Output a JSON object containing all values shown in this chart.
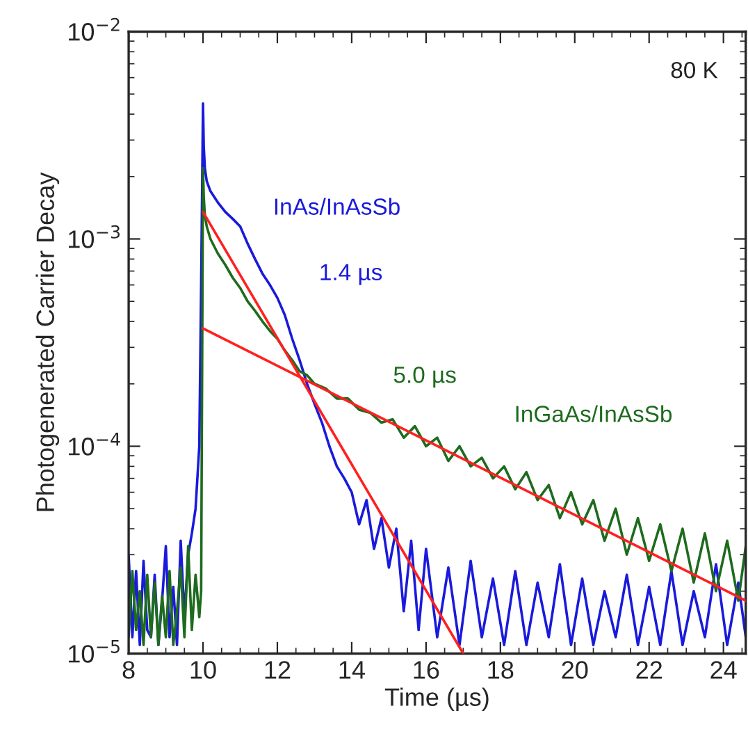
{
  "chart_data": {
    "type": "line",
    "xlabel": "Time (µs)",
    "ylabel": "Photogenerated Carrier Decay",
    "log": "y",
    "xlim": [
      8,
      24.6
    ],
    "ylim": [
      1e-05,
      0.01
    ],
    "xticks": [
      8,
      10,
      12,
      14,
      16,
      18,
      20,
      22,
      24
    ],
    "yticks": [
      {
        "value": 1e-05,
        "label": "10$^{−5}$"
      },
      {
        "value": 0.0001,
        "label": "10$^{−4}$"
      },
      {
        "value": 0.001,
        "label": "10$^{−3}$"
      },
      {
        "value": 0.01,
        "label": "10$^{−2}$"
      }
    ],
    "grid": false,
    "legend": false,
    "marker": "none",
    "line_style": "solid",
    "series": [
      {
        "name": "InAs/InAsSb",
        "color": "#1a1adc",
        "x": [
          8.0,
          8.1,
          8.2,
          8.3,
          8.4,
          8.5,
          8.6,
          8.7,
          8.8,
          8.9,
          9.0,
          9.1,
          9.2,
          9.3,
          9.4,
          9.5,
          9.6,
          9.7,
          9.8,
          9.9,
          9.95,
          10.0,
          10.02,
          10.05,
          10.1,
          10.2,
          10.4,
          10.6,
          10.8,
          11.0,
          11.2,
          11.4,
          11.6,
          11.8,
          12.0,
          12.2,
          12.4,
          12.6,
          12.8,
          13.0,
          13.2,
          13.4,
          13.6,
          13.8,
          14.0,
          14.2,
          14.4,
          14.6,
          14.8,
          15.0,
          15.2,
          15.4,
          15.6,
          15.8,
          16.0,
          16.3,
          16.6,
          16.9,
          17.2,
          17.5,
          17.8,
          18.1,
          18.4,
          18.7,
          19.0,
          19.3,
          19.6,
          19.9,
          20.2,
          20.5,
          20.8,
          21.1,
          21.4,
          21.7,
          22.0,
          22.3,
          22.6,
          22.9,
          23.2,
          23.5,
          23.8,
          24.1,
          24.4,
          24.6
        ],
        "values": [
          3e-05,
          1.2e-05,
          2.5e-05,
          1.1e-05,
          2.8e-05,
          1.3e-05,
          1.2e-05,
          2.4e-05,
          1.1e-05,
          1.8e-05,
          3.3e-05,
          1.2e-05,
          2.1e-05,
          1.1e-05,
          3.5e-05,
          1.5e-05,
          3e-05,
          3.8e-05,
          5e-05,
          0.0001,
          0.0006,
          0.0045,
          0.0028,
          0.0022,
          0.0019,
          0.0017,
          0.0015,
          0.00135,
          0.00125,
          0.00115,
          0.00095,
          0.0008,
          0.00068,
          0.0006,
          0.00052,
          0.00043,
          0.00033,
          0.00026,
          0.0002,
          0.00016,
          0.00013,
          0.0001,
          8e-05,
          7e-05,
          6e-05,
          4.2e-05,
          5.5e-05,
          3.2e-05,
          4.5e-05,
          2.6e-05,
          4e-05,
          1.6e-05,
          3.5e-05,
          1.3e-05,
          3.2e-05,
          1.2e-05,
          2.6e-05,
          1.1e-05,
          2.8e-05,
          1.2e-05,
          2.3e-05,
          1.1e-05,
          2.5e-05,
          1.1e-05,
          2.2e-05,
          1.2e-05,
          2.7e-05,
          1.1e-05,
          2.3e-05,
          1.1e-05,
          2e-05,
          1.2e-05,
          2.4e-05,
          1.1e-05,
          2.1e-05,
          1.1e-05,
          2.5e-05,
          1.1e-05,
          2e-05,
          1.2e-05,
          2.7e-05,
          1.1e-05,
          2.2e-05,
          1.2e-05
        ]
      },
      {
        "name": "InGaAs/InAsSb",
        "color": "#1e6b1e",
        "x": [
          8.0,
          8.1,
          8.2,
          8.3,
          8.4,
          8.5,
          8.6,
          8.7,
          8.8,
          8.9,
          9.0,
          9.1,
          9.2,
          9.3,
          9.4,
          9.5,
          9.6,
          9.7,
          9.8,
          9.9,
          9.95,
          10.0,
          10.02,
          10.05,
          10.1,
          10.2,
          10.4,
          10.6,
          10.8,
          11.0,
          11.2,
          11.4,
          11.6,
          11.8,
          12.0,
          12.2,
          12.4,
          12.6,
          12.8,
          13.0,
          13.3,
          13.6,
          13.9,
          14.2,
          14.5,
          14.8,
          15.1,
          15.4,
          15.7,
          16.0,
          16.3,
          16.6,
          16.9,
          17.2,
          17.5,
          17.8,
          18.1,
          18.4,
          18.7,
          19.0,
          19.3,
          19.6,
          19.9,
          20.2,
          20.5,
          20.8,
          21.1,
          21.4,
          21.7,
          22.0,
          22.3,
          22.6,
          22.9,
          23.2,
          23.5,
          23.8,
          24.1,
          24.4,
          24.6
        ],
        "values": [
          1.2e-05,
          2.5e-05,
          1.3e-05,
          2e-05,
          1.1e-05,
          2.4e-05,
          1.2e-05,
          2.2e-05,
          1.1e-05,
          1.9e-05,
          1.2e-05,
          2.5e-05,
          1.1e-05,
          1.6e-05,
          2.6e-05,
          1.2e-05,
          3.3e-05,
          1.3e-05,
          2.4e-05,
          1.5e-05,
          2e-05,
          0.0022,
          0.0016,
          0.0013,
          0.00115,
          0.001,
          0.00085,
          0.00075,
          0.00065,
          0.00058,
          0.0005,
          0.00045,
          0.0004,
          0.00036,
          0.00033,
          0.00029,
          0.00026,
          0.00023,
          0.00022,
          0.0002,
          0.00019,
          0.00017,
          0.00017,
          0.00015,
          0.000145,
          0.00013,
          0.000135,
          0.00011,
          0.000125,
          0.0001,
          0.00011,
          8.5e-05,
          0.0001,
          8e-05,
          8.8e-05,
          7e-05,
          8e-05,
          6.2e-05,
          7.5e-05,
          5.5e-05,
          6.5e-05,
          4.5e-05,
          6e-05,
          4.2e-05,
          5.5e-05,
          3.5e-05,
          5e-05,
          3e-05,
          4.5e-05,
          2.8e-05,
          4.2e-05,
          2.5e-05,
          4e-05,
          2.2e-05,
          3.8e-05,
          2e-05,
          3.5e-05,
          1.8e-05,
          3.3e-05
        ]
      },
      {
        "color": "#ff2020",
        "x": [
          10,
          17
        ],
        "values": [
          0.00135,
          1e-05
        ]
      },
      {
        "color": "#ff2020",
        "x": [
          10,
          24.6
        ],
        "values": [
          0.00037,
          1.8e-05
        ]
      }
    ],
    "annotations": [
      "80 K",
      "1.4 µs",
      "5.0 µs"
    ]
  }
}
